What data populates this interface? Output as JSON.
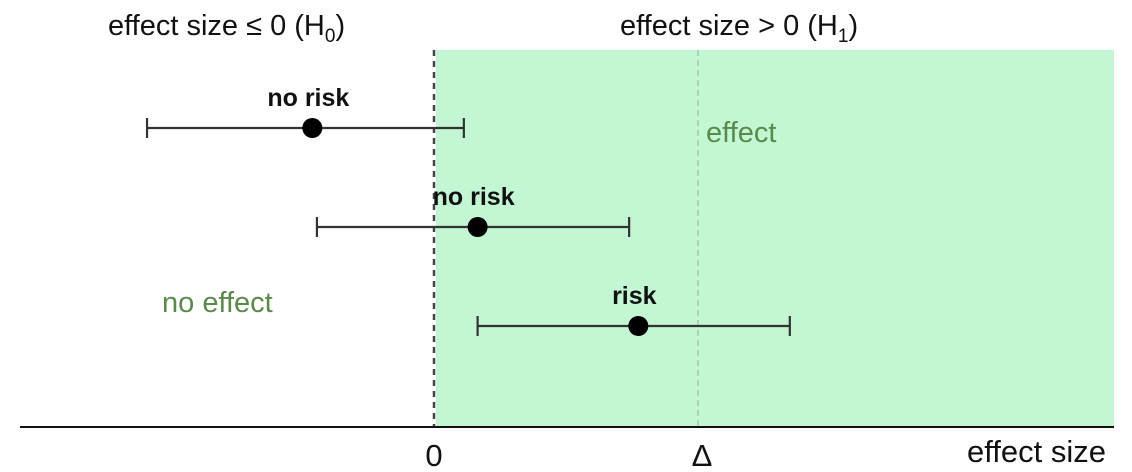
{
  "header": {
    "h0_label_prefix": "effect size ≤ 0 (H",
    "h0_sub": "0",
    "h0_suffix": ")",
    "h1_label_prefix": "effect size > 0 (H",
    "h1_sub": "1",
    "h1_suffix": ")"
  },
  "regions": {
    "effect_label": "effect",
    "no_effect_label": "no effect",
    "effect_region_color": "#c3f6d3",
    "label_color": "#5a8a4a"
  },
  "axis": {
    "zero_label": "0",
    "delta_label": "Δ",
    "x_label": "effect size"
  },
  "intervals": [
    {
      "label": "no risk",
      "lower": -1.25,
      "estimate": -0.53,
      "upper": 0.13
    },
    {
      "label": "no risk",
      "lower": -0.51,
      "estimate": 0.19,
      "upper": 0.85
    },
    {
      "label": "risk",
      "lower": 0.19,
      "estimate": 0.89,
      "upper": 1.55
    }
  ],
  "reference": {
    "zero": 0,
    "delta": 1.15
  }
}
